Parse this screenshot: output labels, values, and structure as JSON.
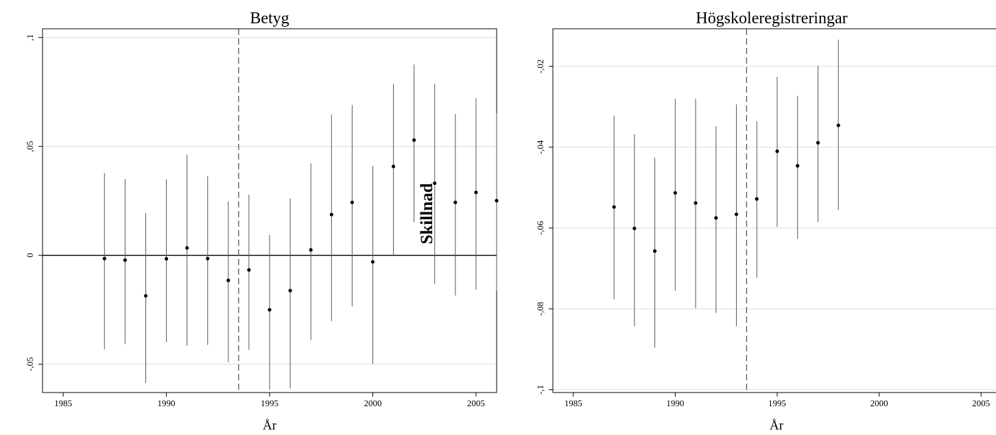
{
  "chart_data": [
    {
      "type": "scatter",
      "title": "Betyg",
      "xlabel": "År",
      "ylabel": "",
      "xlim": [
        1984,
        2006
      ],
      "ylim": [
        -0.063,
        0.104
      ],
      "x_ticks": [
        1985,
        1990,
        1995,
        2000,
        2005
      ],
      "x_tick_labels": [
        "1985",
        "1990",
        "1995",
        "2000",
        "2005"
      ],
      "y_ticks": [
        -0.05,
        0,
        0.05,
        0.1
      ],
      "y_tick_labels": [
        "-,05",
        "0",
        ",05",
        ",1"
      ],
      "grid": "horizontal",
      "reference_line": {
        "y": 0
      },
      "vertical_marker": {
        "x": 1993.5,
        "style": "dashed"
      },
      "error_bars": true,
      "annotation": "Skillnad",
      "series": [
        {
          "x": [
            1987,
            1988,
            1989,
            1990,
            1991,
            1992,
            1993,
            1994,
            1995,
            1996,
            1997,
            1998,
            1999,
            2000,
            2001,
            2002,
            2003,
            2004,
            2005,
            2006
          ],
          "y": [
            -0.0015,
            -0.0022,
            -0.0186,
            -0.0016,
            0.0034,
            -0.0015,
            -0.0115,
            -0.0067,
            -0.025,
            -0.0162,
            0.0025,
            0.0187,
            0.0243,
            -0.003,
            0.0408,
            0.0529,
            0.0331,
            0.0243,
            0.0289,
            0.0251
          ],
          "lower": [
            -0.0432,
            -0.0407,
            -0.0586,
            -0.0398,
            -0.0414,
            -0.0412,
            -0.0491,
            -0.0434,
            -0.0618,
            -0.0611,
            -0.0389,
            -0.0302,
            -0.0235,
            -0.0498,
            0,
            0.0151,
            -0.013,
            -0.0185,
            -0.0157,
            -0.0164
          ],
          "upper": [
            0.0378,
            0.0349,
            0.0194,
            0.0349,
            0.0463,
            0.0363,
            0.0247,
            0.0279,
            0.0094,
            0.0261,
            0.0422,
            0.0646,
            0.069,
            0.0409,
            0.0787,
            0.0876,
            0.0788,
            0.0649,
            0.0721,
            0.0652
          ]
        }
      ]
    },
    {
      "type": "scatter",
      "title": "Högskoleregistreringar",
      "xlabel": "År",
      "ylabel": "",
      "xlim": [
        1984,
        2006
      ],
      "ylim": [
        -0.1007,
        -0.0107
      ],
      "x_ticks": [
        1985,
        1990,
        1995,
        2000,
        2005
      ],
      "x_tick_labels": [
        "1985",
        "1990",
        "1995",
        "2000",
        "2005"
      ],
      "y_ticks": [
        -0.1,
        -0.08,
        -0.06,
        -0.04,
        -0.02
      ],
      "y_tick_labels": [
        "-,1",
        "-,08",
        "-,06",
        "-,04",
        "-,02"
      ],
      "grid": "horizontal",
      "vertical_marker": {
        "x": 1993.5,
        "style": "dashed"
      },
      "error_bars": true,
      "series": [
        {
          "x": [
            1987,
            1988,
            1989,
            1990,
            1991,
            1992,
            1993,
            1994,
            1995,
            1996,
            1997,
            1998
          ],
          "y": [
            -0.0548,
            -0.0601,
            -0.0657,
            -0.0513,
            -0.0538,
            -0.0575,
            -0.0566,
            -0.0528,
            -0.041,
            -0.0446,
            -0.0389,
            -0.0346
          ],
          "lower": [
            -0.0776,
            -0.0843,
            -0.0896,
            -0.0755,
            -0.0798,
            -0.081,
            -0.0843,
            -0.0723,
            -0.0597,
            -0.0627,
            -0.0585,
            -0.0555
          ],
          "upper": [
            -0.0322,
            -0.0368,
            -0.0426,
            -0.028,
            -0.028,
            -0.0348,
            -0.0294,
            -0.0336,
            -0.0226,
            -0.0273,
            -0.0198,
            -0.0134
          ]
        }
      ]
    }
  ]
}
